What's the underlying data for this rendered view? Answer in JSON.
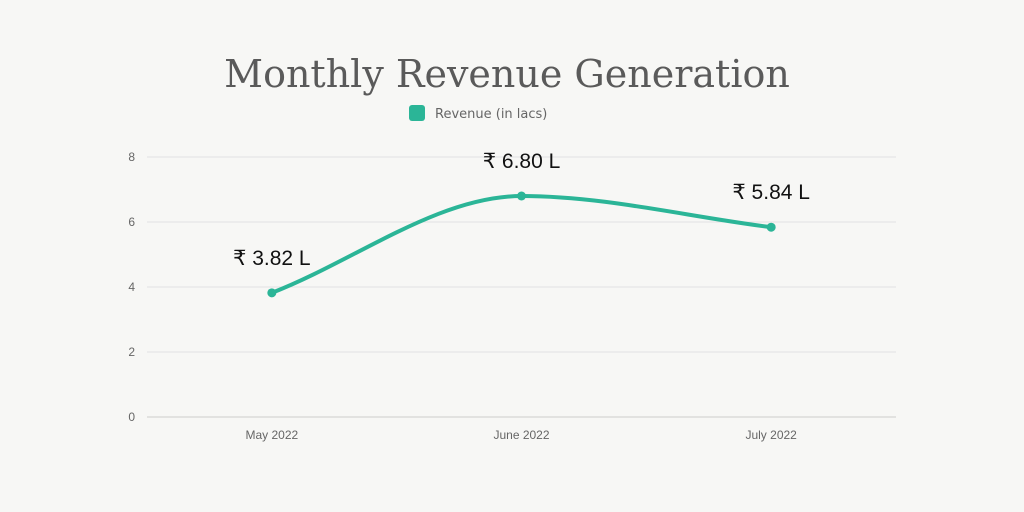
{
  "chart_data": {
    "type": "line",
    "title": "Monthly Revenue Generation",
    "categories": [
      "May 2022",
      "June 2022",
      "July 2022"
    ],
    "series": [
      {
        "name": "Revenue (in lacs)",
        "values": [
          3.82,
          6.8,
          5.84
        ],
        "color": "#2bb597"
      }
    ],
    "data_labels": [
      "₹ 3.82 L",
      "₹ 6.80 L",
      "₹ 5.84 L"
    ],
    "ylim": [
      0,
      8
    ],
    "y_ticks": [
      "0",
      "2",
      "4",
      "6",
      "8"
    ],
    "grid": true,
    "smooth": true,
    "legend_position": "top-center"
  }
}
